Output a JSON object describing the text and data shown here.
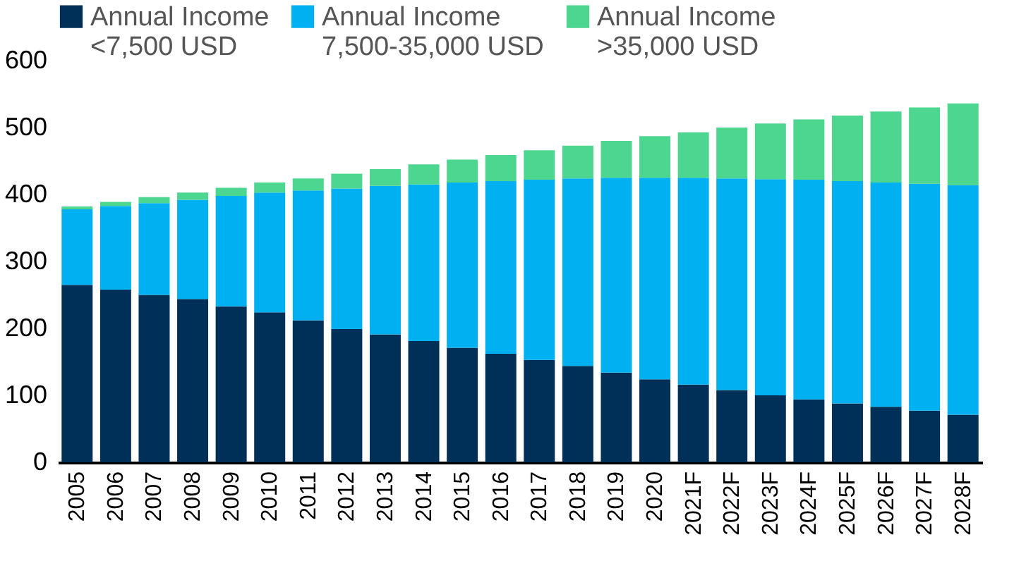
{
  "chart_data": {
    "type": "bar",
    "stacked": true,
    "categories": [
      "2005",
      "2006",
      "2007",
      "2008",
      "2009",
      "2010",
      "2011",
      "2012",
      "2013",
      "2014",
      "2015",
      "2016",
      "2017",
      "2018",
      "2019",
      "2020",
      "2021F",
      "2022F",
      "2023F",
      "2024F",
      "2025F",
      "2026F",
      "2027F",
      "2028F"
    ],
    "series": [
      {
        "name": "Annual Income\n<7,500 USD",
        "color": "#003057",
        "values": [
          265,
          258,
          250,
          244,
          233,
          224,
          212,
          199,
          191,
          181,
          171,
          162,
          153,
          144,
          134,
          124,
          116,
          108,
          100,
          94,
          88,
          83,
          77,
          71
        ]
      },
      {
        "name": "Annual Income\n7,500-35,000 USD",
        "color": "#00b0f0",
        "values": [
          113,
          125,
          137,
          148,
          165,
          179,
          194,
          210,
          222,
          234,
          247,
          258,
          269,
          280,
          291,
          301,
          309,
          316,
          323,
          328,
          332,
          335,
          339,
          343
        ]
      },
      {
        "name": "Annual Income\n>35,000 USD",
        "color": "#4cd68f",
        "values": [
          4,
          6,
          9,
          11,
          12,
          15,
          18,
          22,
          25,
          30,
          34,
          39,
          44,
          49,
          55,
          62,
          68,
          76,
          83,
          90,
          98,
          106,
          114,
          122
        ]
      }
    ],
    "ylim": [
      0,
      600
    ],
    "yticks": [
      0,
      100,
      200,
      300,
      400,
      500,
      600
    ],
    "grid": false,
    "legend": "top"
  }
}
